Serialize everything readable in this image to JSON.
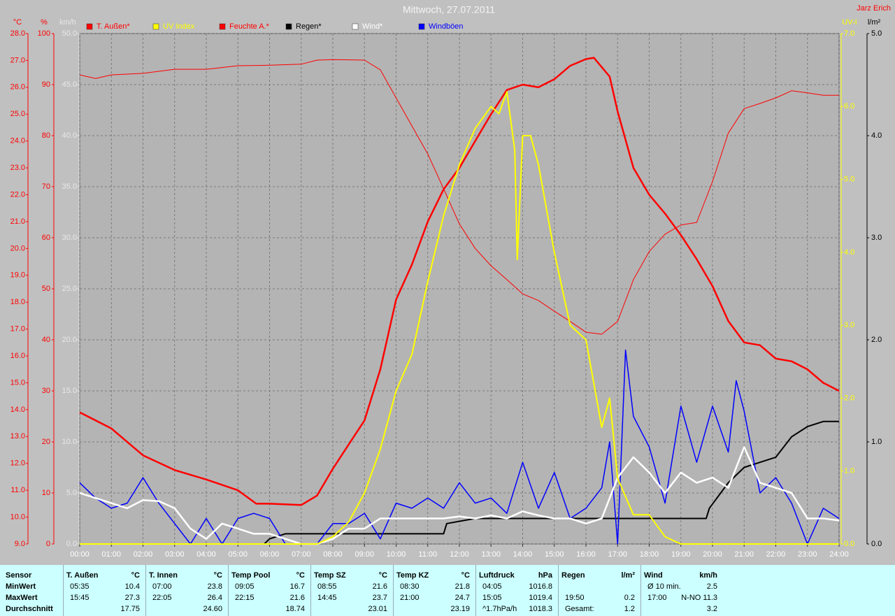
{
  "chart_data": {
    "type": "line",
    "title": "Mittwoch, 27.07.2011",
    "author": "Jarz Erich",
    "grid": true,
    "xlim": [
      0,
      24
    ],
    "xticks": [
      {
        "value": 0,
        "label": "00:00"
      },
      {
        "value": 1,
        "label": "01:00"
      },
      {
        "value": 2,
        "label": "02:00"
      },
      {
        "value": 3,
        "label": "03:00"
      },
      {
        "value": 4,
        "label": "04:00"
      },
      {
        "value": 5,
        "label": "05:00"
      },
      {
        "value": 6,
        "label": "06:00"
      },
      {
        "value": 7,
        "label": "07:00"
      },
      {
        "value": 8,
        "label": "08:00"
      },
      {
        "value": 9,
        "label": "09:00"
      },
      {
        "value": 10,
        "label": "10:00"
      },
      {
        "value": 11,
        "label": "11:00"
      },
      {
        "value": 12,
        "label": "12:00"
      },
      {
        "value": 13,
        "label": "13:00"
      },
      {
        "value": 14,
        "label": "14:00"
      },
      {
        "value": 15,
        "label": "15:00"
      },
      {
        "value": 16,
        "label": "16:00"
      },
      {
        "value": 17,
        "label": "17:00"
      },
      {
        "value": 18,
        "label": "18:00"
      },
      {
        "value": 19,
        "label": "19:00"
      },
      {
        "value": 20,
        "label": "20:00"
      },
      {
        "value": 21,
        "label": "21:00"
      },
      {
        "value": 22,
        "label": "22:00"
      },
      {
        "value": 23,
        "label": "23:00"
      },
      {
        "value": 24,
        "label": "24:00"
      }
    ],
    "axes": [
      {
        "label": "°C",
        "color": "#ff0000",
        "lim": [
          9,
          28
        ],
        "ticks": [
          {
            "value": 28,
            "label": "28.0"
          },
          {
            "value": 27,
            "label": "27.0"
          },
          {
            "value": 26,
            "label": "26.0"
          },
          {
            "value": 25,
            "label": "25.0"
          },
          {
            "value": 24,
            "label": "24.0"
          },
          {
            "value": 23,
            "label": "23.0"
          },
          {
            "value": 22,
            "label": "22.0"
          },
          {
            "value": 21,
            "label": "21.0"
          },
          {
            "value": 20,
            "label": "20.0"
          },
          {
            "value": 19,
            "label": "19.0"
          },
          {
            "value": 18,
            "label": "18.0"
          },
          {
            "value": 17,
            "label": "17.0"
          },
          {
            "value": 16,
            "label": "16.0"
          },
          {
            "value": 15,
            "label": "15.0"
          },
          {
            "value": 14,
            "label": "14.0"
          },
          {
            "value": 13,
            "label": "13.0"
          },
          {
            "value": 12,
            "label": "12.0"
          },
          {
            "value": 11,
            "label": "11.0"
          },
          {
            "value": 10,
            "label": "10.0"
          },
          {
            "value": 9,
            "label": "9.0"
          }
        ]
      },
      {
        "label": "%",
        "color": "#ff0000",
        "lim": [
          0,
          100
        ],
        "ticks": [
          100,
          90,
          80,
          70,
          60,
          50,
          40,
          30,
          20,
          10,
          0
        ]
      },
      {
        "label": "km/h",
        "color": "#e8e8e8",
        "lim": [
          0,
          50
        ],
        "grid": true,
        "ticks": [
          {
            "value": 50,
            "label": "50.0"
          },
          {
            "value": 45,
            "label": "45.0"
          },
          {
            "value": 40,
            "label": "40.0"
          },
          {
            "value": 35,
            "label": "35.0"
          },
          {
            "value": 30,
            "label": "30.0"
          },
          {
            "value": 25,
            "label": "25.0"
          },
          {
            "value": 20,
            "label": "20.0"
          },
          {
            "value": 15,
            "label": "15.0"
          },
          {
            "value": 10,
            "label": "10.0"
          },
          {
            "value": 5,
            "label": "5.0"
          },
          {
            "value": 0,
            "label": "0.0"
          }
        ]
      },
      {
        "label": "UV-I",
        "color": "#ffff00",
        "lim": [
          0,
          7
        ],
        "ticks": [
          {
            "value": 7,
            "label": "7.0"
          },
          {
            "value": 6,
            "label": "6.0"
          },
          {
            "value": 5,
            "label": "5.0"
          },
          {
            "value": 4,
            "label": "4.0"
          },
          {
            "value": 3,
            "label": "3.0"
          },
          {
            "value": 2,
            "label": "2.0"
          },
          {
            "value": 1,
            "label": "1.0"
          },
          {
            "value": 0,
            "label": "0.0"
          }
        ]
      },
      {
        "label": "l/m²",
        "color": "#000000",
        "lim": [
          0,
          5
        ],
        "ticks": [
          {
            "value": 5,
            "label": "5.0"
          },
          {
            "value": 4,
            "label": "4.0"
          },
          {
            "value": 3,
            "label": "3.0"
          },
          {
            "value": 2,
            "label": "2.0"
          },
          {
            "value": 1,
            "label": "1.0"
          },
          {
            "value": 0,
            "label": "0.0"
          }
        ]
      }
    ],
    "series": [
      {
        "name": "T. Außen*",
        "color": "#ff0000",
        "width": 2.5,
        "axis": 0,
        "x": [
          0,
          1,
          2,
          3,
          4,
          5,
          5.58,
          6,
          7,
          7.5,
          8,
          8.5,
          9,
          9.5,
          10,
          10.5,
          11,
          11.5,
          12,
          12.5,
          13,
          13.5,
          14,
          14.5,
          15,
          15.5,
          16,
          16.25,
          16.75,
          17,
          17.5,
          18,
          18.5,
          19,
          19.5,
          20,
          20.5,
          21,
          21.5,
          22,
          22.5,
          23,
          23.5,
          24
        ],
        "values": [
          13.9,
          13.3,
          12.3,
          11.75,
          11.4,
          11.0,
          10.5,
          10.5,
          10.45,
          10.8,
          11.8,
          12.7,
          13.6,
          15.5,
          18.1,
          19.4,
          21.0,
          22.2,
          23.0,
          24.0,
          25.0,
          25.9,
          26.1,
          26.0,
          26.3,
          26.8,
          27.05,
          27.1,
          26.4,
          25.1,
          23.0,
          22.0,
          21.3,
          20.5,
          19.6,
          18.6,
          17.3,
          16.5,
          16.4,
          15.9,
          15.8,
          15.5,
          15.0,
          14.7
        ]
      },
      {
        "name": "UV Index",
        "color": "#ffff00",
        "width": 2,
        "axis": 3,
        "x": [
          0,
          7.5,
          8,
          8.5,
          9,
          9.5,
          10,
          10.5,
          11,
          11.5,
          12,
          12.5,
          13,
          13.25,
          13.5,
          13.75,
          13.83,
          14,
          14.25,
          14.5,
          15,
          15.5,
          16,
          16.5,
          16.75,
          17,
          17.5,
          18,
          18.5,
          19,
          24
        ],
        "values": [
          0,
          0,
          0.1,
          0.3,
          0.7,
          1.3,
          2.1,
          2.6,
          3.6,
          4.5,
          5.2,
          5.7,
          6.0,
          5.9,
          6.2,
          5.4,
          3.9,
          5.6,
          5.6,
          5.2,
          4.0,
          3.0,
          2.8,
          1.6,
          2.0,
          0.9,
          0.4,
          0.4,
          0.1,
          0,
          0
        ]
      },
      {
        "name": "Feuchte A.*",
        "color": "#ff0000",
        "width": 1,
        "axis": 1,
        "x": [
          0,
          0.5,
          1,
          2,
          3,
          4,
          5,
          6,
          7,
          7.5,
          8,
          9,
          9.5,
          10,
          10.5,
          11,
          11.5,
          12,
          12.5,
          13,
          13.5,
          14,
          14.5,
          15,
          15.5,
          16,
          16.5,
          17,
          17.5,
          18,
          18.5,
          19,
          19.5,
          20,
          20.5,
          21,
          21.5,
          22,
          22.5,
          23,
          23.5,
          24
        ],
        "values": [
          91.9,
          91.2,
          91.9,
          92.2,
          93,
          93,
          93.7,
          93.8,
          94,
          94.8,
          94.9,
          94.8,
          92.9,
          87.4,
          81.9,
          76.4,
          69.6,
          62.7,
          57.9,
          54.5,
          51.8,
          49.0,
          47.7,
          45.6,
          43.6,
          41.5,
          41.1,
          43.6,
          51.8,
          57.3,
          60.7,
          62.5,
          63.0,
          71.0,
          80.5,
          85.3,
          86.3,
          87.4,
          88.8,
          88.4,
          87.9,
          87.9
        ]
      },
      {
        "name": "Regen*",
        "color": "#000000",
        "width": 2,
        "axis": 4,
        "x": [
          0,
          5.83,
          6,
          6.5,
          11.5,
          11.6,
          12.5,
          19.8,
          19.9,
          20.5,
          21,
          21.5,
          22,
          22.5,
          23,
          23.5,
          24
        ],
        "values": [
          0,
          0,
          0.05,
          0.1,
          0.1,
          0.2,
          0.25,
          0.25,
          0.35,
          0.6,
          0.75,
          0.8,
          0.85,
          1.05,
          1.15,
          1.2,
          1.2
        ]
      },
      {
        "name": "Wind*",
        "color": "#ffffff",
        "width": 2.5,
        "axis": 2,
        "x": [
          0,
          0.5,
          1,
          1.5,
          2,
          2.5,
          3,
          3.5,
          4,
          4.5,
          5,
          5.5,
          6,
          6.5,
          7,
          7.5,
          8,
          8.5,
          9,
          9.5,
          10,
          10.5,
          11,
          11.5,
          12,
          12.5,
          13,
          13.5,
          14,
          14.5,
          15,
          15.5,
          16,
          16.5,
          17,
          17.5,
          18,
          18.5,
          19,
          19.5,
          20,
          20.5,
          21,
          21.5,
          22,
          22.5,
          23,
          23.5,
          24
        ],
        "values": [
          5.0,
          4.5,
          4.0,
          3.5,
          4.3,
          4.2,
          3.5,
          1.5,
          0.5,
          2.0,
          1.5,
          1.0,
          1.0,
          0.5,
          0,
          0,
          0.5,
          1.5,
          1.5,
          2.5,
          2.5,
          2.5,
          2.5,
          2.5,
          2.7,
          2.5,
          2.8,
          2.5,
          3.2,
          2.8,
          2.5,
          2.5,
          2.0,
          2.5,
          6.5,
          8.5,
          7.0,
          5.0,
          7.0,
          6.0,
          6.5,
          5.5,
          9.5,
          6.0,
          5.5,
          5.0,
          2.5,
          2.5,
          2.3
        ]
      },
      {
        "name": "Windböen",
        "color": "#0000ff",
        "width": 1.5,
        "axis": 2,
        "x": [
          0,
          0.5,
          1,
          1.5,
          2,
          2.5,
          3,
          3.5,
          4,
          4.5,
          5,
          5.5,
          6,
          6.5,
          7,
          7.5,
          8,
          8.5,
          9,
          9.5,
          10,
          10.5,
          11,
          11.5,
          12,
          12.5,
          13,
          13.5,
          14,
          14.5,
          15,
          15.5,
          16,
          16.5,
          16.75,
          17,
          17.25,
          17.5,
          18,
          18.5,
          19,
          19.5,
          20,
          20.5,
          20.75,
          21,
          21.5,
          22,
          22.5,
          23,
          23.5,
          24
        ],
        "values": [
          6.0,
          4.5,
          3.5,
          4.0,
          6.5,
          4.0,
          2.0,
          0,
          2.5,
          0,
          2.5,
          3.0,
          2.5,
          0,
          0,
          0,
          2.0,
          2.0,
          3.0,
          0.5,
          4.0,
          3.5,
          4.5,
          3.5,
          6.0,
          4.0,
          4.5,
          3.0,
          8.0,
          3.5,
          7.0,
          2.5,
          3.5,
          5.5,
          10.0,
          0,
          19.0,
          12.5,
          9.5,
          4.0,
          13.5,
          8.0,
          13.5,
          9.0,
          16.0,
          13.0,
          5.0,
          6.5,
          4.0,
          0,
          3.5,
          2.5
        ]
      }
    ]
  },
  "table": {
    "row_labels": [
      "Sensor",
      "MinWert",
      "MaxWert",
      "Durchschnitt"
    ],
    "groups": [
      {
        "name": "T. Außen",
        "unit": "°C",
        "rows": [
          {
            "time": "05:35",
            "value": "10.4"
          },
          {
            "time": "15:45",
            "value": "27.3"
          },
          {
            "value": "17.75"
          }
        ]
      },
      {
        "name": "T. Innen",
        "unit": "°C",
        "rows": [
          {
            "time": "07:00",
            "value": "23.8"
          },
          {
            "time": "22:05",
            "value": "26.4"
          },
          {
            "value": "24.60"
          }
        ]
      },
      {
        "name": "Temp Pool",
        "unit": "°C",
        "rows": [
          {
            "time": "09:05",
            "value": "16.7"
          },
          {
            "time": "22:15",
            "value": "21.6"
          },
          {
            "value": "18.74"
          }
        ]
      },
      {
        "name": "Temp SZ",
        "unit": "°C",
        "rows": [
          {
            "time": "08:55",
            "value": "21.6"
          },
          {
            "time": "14:45",
            "value": "23.7"
          },
          {
            "value": "23.01"
          }
        ]
      },
      {
        "name": "Temp KZ",
        "unit": "°C",
        "rows": [
          {
            "time": "08:30",
            "value": "21.8"
          },
          {
            "time": "21:00",
            "value": "24.7"
          },
          {
            "value": "23.19"
          }
        ]
      },
      {
        "name": "Luftdruck",
        "unit": "hPa",
        "rows": [
          {
            "time": "04:05",
            "value": "1016.8"
          },
          {
            "time": "15:05",
            "value": "1019.4"
          },
          {
            "time": "^1.7hPa/h",
            "value": "1018.3"
          }
        ]
      },
      {
        "name": "Regen",
        "unit": "l/m²",
        "rows": [
          {},
          {
            "time": "19:50",
            "value": "0.2"
          },
          {
            "time": "Gesamt:",
            "value": "1.2"
          }
        ]
      },
      {
        "name": "Wind",
        "unit": "km/h",
        "rows": [
          {
            "time": "Ø 10 min.",
            "value": "2.5"
          },
          {
            "time": "17:00",
            "value": "N-NO 11.3"
          },
          {
            "value": "3.2"
          }
        ]
      }
    ]
  }
}
